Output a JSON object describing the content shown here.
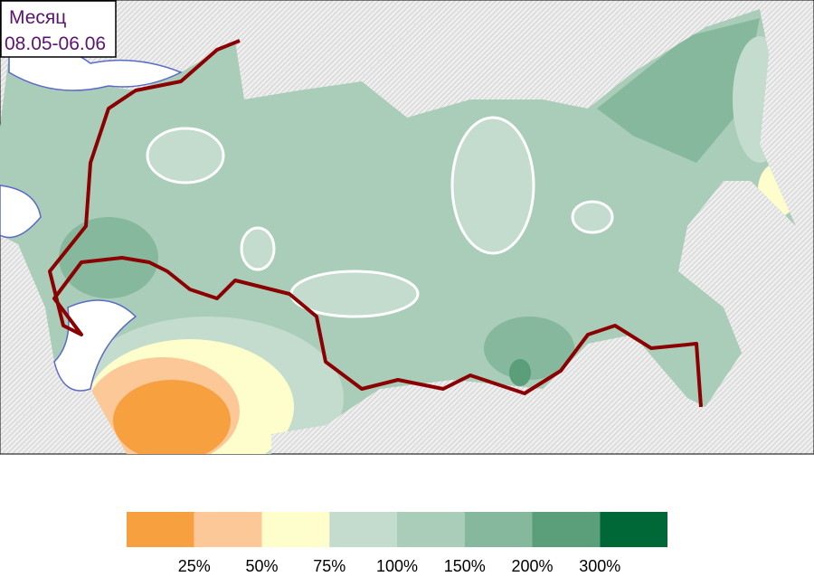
{
  "header": {
    "title": "Месяц",
    "period": "08.05-06.06"
  },
  "legend": {
    "colors": [
      "#f7a040",
      "#fdc898",
      "#fefecc",
      "#c3dccd",
      "#a9cdb9",
      "#85b89d",
      "#5a9e7a",
      "#006837"
    ],
    "labels": [
      "25%",
      "50%",
      "75%",
      "100%",
      "150%",
      "200%",
      "300%"
    ]
  }
}
